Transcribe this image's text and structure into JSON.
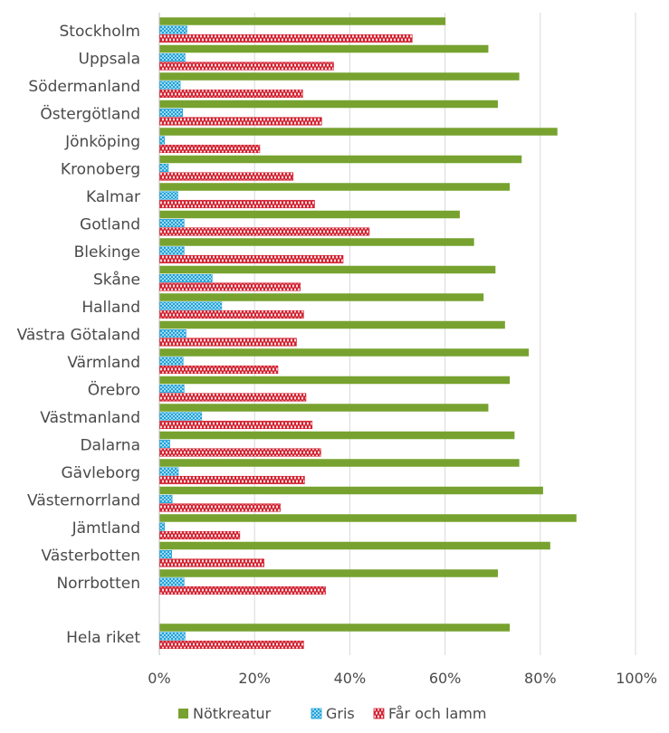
{
  "chart_data": {
    "type": "bar",
    "orientation": "horizontal",
    "title": "",
    "xlabel": "",
    "ylabel": "",
    "xlim": [
      0,
      100
    ],
    "x_ticks": [
      "0%",
      "20%",
      "40%",
      "60%",
      "80%",
      "100%"
    ],
    "grid": true,
    "legend_position": "bottom",
    "categories": [
      "Stockholm",
      "Uppsala",
      "Södermanland",
      "Östergötland",
      "Jönköping",
      "Kronoberg",
      "Kalmar",
      "Gotland",
      "Blekinge",
      "Skåne",
      "Halland",
      "Västra Götaland",
      "Värmland",
      "Örebro",
      "Västmanland",
      "Dalarna",
      "Gävleborg",
      "Västernorrland",
      "Jämtland",
      "Västerbotten",
      "Norrbotten",
      "Hela riket"
    ],
    "series": [
      {
        "name": "Nötkreatur",
        "color": "#77a22f",
        "pattern": "solid",
        "values": [
          60,
          69,
          75.5,
          71,
          83.5,
          76,
          73.5,
          63,
          66,
          70.5,
          68,
          72.5,
          77.5,
          73.5,
          69,
          74.5,
          75.5,
          80.5,
          87.5,
          82,
          71,
          73.5
        ]
      },
      {
        "name": "Gris",
        "color": "#1ba1d9",
        "pattern": "crosshatch",
        "values": [
          5.7,
          5.3,
          4.3,
          4.8,
          1.0,
          1.8,
          3.8,
          5.1,
          5.1,
          11,
          13,
          5.5,
          4.9,
          5.1,
          8.8,
          2.1,
          3.9,
          2.6,
          1.0,
          2.5,
          5.1,
          5.3
        ]
      },
      {
        "name": "Får och lamm",
        "color": "#d2202f",
        "pattern": "zigzag",
        "values": [
          53,
          36.5,
          30,
          34,
          21,
          28,
          32.5,
          44,
          38.5,
          29.5,
          30.2,
          28.7,
          24.8,
          30.7,
          32,
          33.8,
          30.4,
          25.3,
          16.8,
          21.9,
          34.8,
          30.2
        ]
      }
    ]
  }
}
